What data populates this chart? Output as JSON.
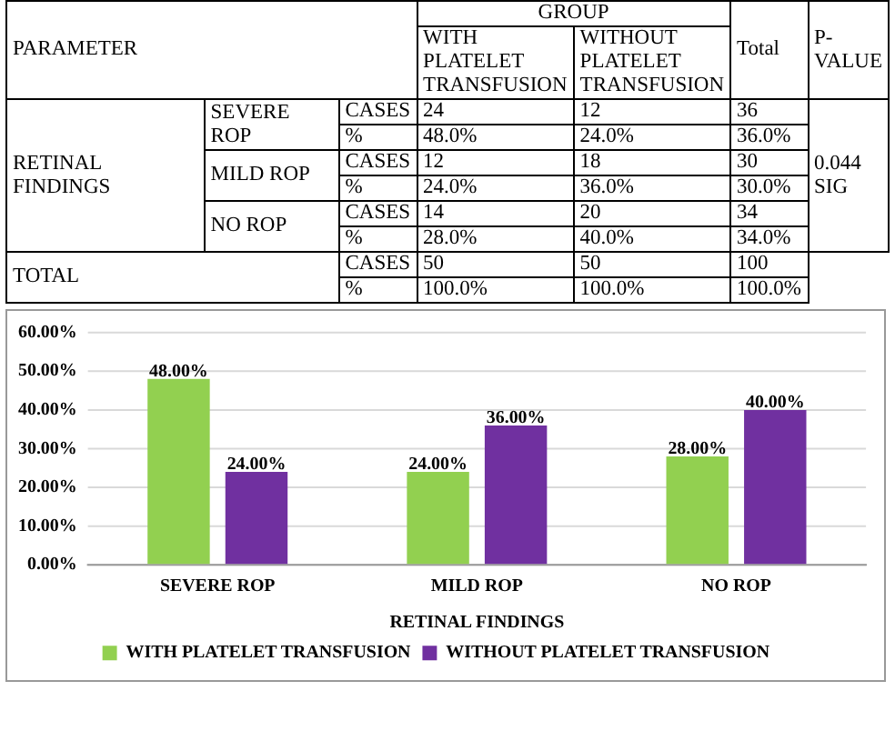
{
  "chart_data": [
    {
      "type": "other",
      "annotations": [
        "PARAMETER",
        "GROUP",
        "Total",
        "P-VALUE",
        "WITH PLATELET TRANSFUSION",
        "WITHOUT PLATELET TRANSFUSION",
        "RETINAL FINDINGS",
        "SEVERE ROP",
        "CASES",
        "24",
        "12",
        "36",
        "0.044 SIG",
        "%",
        "48.0%",
        "24.0%",
        "36.0%",
        "MILD ROP",
        "CASES",
        "12",
        "18",
        "30",
        "%",
        "24.0%",
        "36.0%",
        "30.0%",
        "NO ROP",
        "CASES",
        "14",
        "20",
        "34",
        "%",
        "28.0%",
        "40.0%",
        "34.0%",
        "TOTAL",
        "CASES",
        "50",
        "50",
        "100",
        "%",
        "100.0%",
        "100.0%",
        "100.0%"
      ]
    },
    {
      "type": "bar",
      "xlabel": "RETINAL FINDINGS",
      "categories": [
        "SEVERE ROP",
        "MILD ROP",
        "NO ROP"
      ],
      "series": [
        {
          "name": "WITH PLATELET TRANSFUSION",
          "color": "#92d050",
          "values": [
            48,
            24,
            28
          ],
          "value_labels": [
            "48.00%",
            "24.00%",
            "28.00%"
          ]
        },
        {
          "name": "WITHOUT PLATELET TRANSFUSION",
          "color": "#7030a0",
          "values": [
            24,
            36,
            40
          ],
          "value_labels": [
            "24.00%",
            "36.00%",
            "40.00%"
          ]
        }
      ],
      "ylim": [
        0,
        60
      ],
      "yticks": [
        {
          "value": 0,
          "label": "0.00%"
        },
        {
          "value": 10,
          "label": "10.00%"
        },
        {
          "value": 20,
          "label": "20.00%"
        },
        {
          "value": 30,
          "label": "30.00%"
        },
        {
          "value": 40,
          "label": "40.00%"
        },
        {
          "value": 50,
          "label": "50.00%"
        },
        {
          "value": 60,
          "label": "60.00%"
        }
      ],
      "grid": "y",
      "legend": "bottom"
    }
  ]
}
